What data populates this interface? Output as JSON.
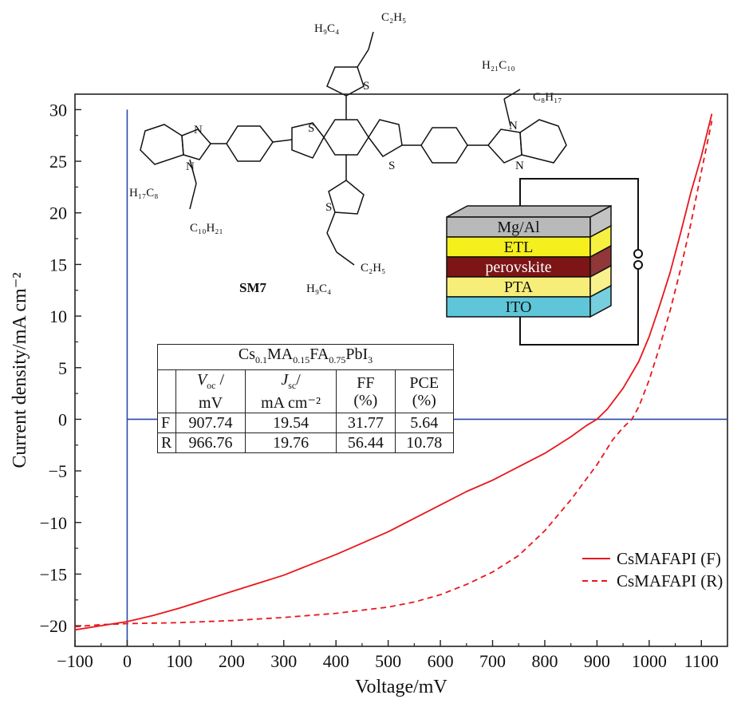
{
  "chart_data": {
    "type": "line",
    "title": "",
    "xlabel": "Voltage/mV",
    "ylabel": "Current density/mA cm⁻²",
    "xlim": [
      -100,
      1150
    ],
    "ylim": [
      -22,
      31.5
    ],
    "xticks": [
      -100,
      0,
      100,
      200,
      300,
      400,
      500,
      600,
      700,
      800,
      900,
      1000,
      1100
    ],
    "yticks": [
      -20,
      -15,
      -10,
      -5,
      0,
      5,
      10,
      15,
      20,
      25,
      30
    ],
    "xtick_labels": [
      "−100",
      "0",
      "100",
      "200",
      "300",
      "400",
      "500",
      "600",
      "700",
      "800",
      "900",
      "1000",
      "1100"
    ],
    "ytick_labels": [
      "−20",
      "−15",
      "−10",
      "−5",
      "0",
      "5",
      "10",
      "15",
      "20",
      "25",
      "30"
    ],
    "reference_lines": {
      "x": 0,
      "y": 0
    },
    "grid": false,
    "legend_position": "bottom-right",
    "series": [
      {
        "name": "CsMAFAPI (F)",
        "style": "solid",
        "color": "#e8161b",
        "x": [
          -100,
          -50,
          0,
          50,
          100,
          150,
          200,
          250,
          300,
          350,
          400,
          450,
          500,
          550,
          600,
          650,
          700,
          750,
          800,
          850,
          880,
          900,
          920,
          950,
          980,
          1000,
          1020,
          1040,
          1060,
          1080,
          1100,
          1120
        ],
        "y": [
          -20.4,
          -20.0,
          -19.6,
          -19.0,
          -18.3,
          -17.5,
          -16.7,
          -15.9,
          -15.1,
          -14.1,
          -13.1,
          -12.0,
          -10.9,
          -9.6,
          -8.3,
          -7.0,
          -5.9,
          -4.6,
          -3.3,
          -1.7,
          -0.6,
          0.0,
          1.0,
          3.0,
          5.6,
          8.0,
          11.0,
          14.2,
          18.0,
          22.0,
          25.5,
          29.6
        ]
      },
      {
        "name": "CsMAFAPI (R)",
        "style": "dashed",
        "color": "#e8161b",
        "x": [
          -100,
          -50,
          0,
          100,
          200,
          300,
          400,
          500,
          550,
          600,
          650,
          700,
          750,
          800,
          850,
          900,
          930,
          950,
          967,
          980,
          1000,
          1020,
          1040,
          1060,
          1080,
          1100,
          1120
        ],
        "y": [
          -20.1,
          -19.9,
          -19.8,
          -19.7,
          -19.5,
          -19.2,
          -18.8,
          -18.2,
          -17.7,
          -17.0,
          -16.0,
          -14.8,
          -13.2,
          -10.8,
          -7.8,
          -4.4,
          -2.0,
          -0.8,
          0.0,
          1.2,
          3.8,
          7.0,
          10.5,
          14.5,
          19.0,
          24.0,
          28.9
        ]
      }
    ]
  },
  "molecule": {
    "label": "SM7",
    "atoms": {
      "n_left_top": "N",
      "n_left_bottom": "N",
      "s_core_left": "S",
      "s_core_right": "S",
      "s_top": "S",
      "s_bottom": "S",
      "n_right_top": "N",
      "n_right_bottom": "N"
    },
    "substituents": {
      "top_h9c4": "H₉C₄",
      "top_c2h5": "C₂H₅",
      "bottom_h9c4": "H₉C₄",
      "bottom_c2h5": "C₂H₅",
      "left_h17c8": "H₁₇C₈",
      "left_c10h21": "C₁₀H₂₁",
      "right_h21c10": "H₂₁C₁₀",
      "right_c8h17": "C₈H₁₇"
    }
  },
  "device_stack": {
    "layers": [
      {
        "label": "Mg/Al",
        "color": "#b9b9b9"
      },
      {
        "label": "ETL",
        "color": "#f5ef1e"
      },
      {
        "label": "perovskite",
        "color": "#7d1416",
        "text_color": "#ffffff"
      },
      {
        "label": "PTA",
        "color": "#f7ee7a"
      },
      {
        "label": "ITO",
        "color": "#5ec6d8"
      }
    ]
  },
  "table": {
    "title_parts": [
      "Cs",
      "0.1",
      "MA",
      "0.15",
      "FA",
      "0.75",
      "PbI",
      "3"
    ],
    "headers": {
      "voc_sym": "V",
      "voc_sub": "oc",
      "voc_slash": "/",
      "voc_unit": "mV",
      "jsc_sym": "J",
      "jsc_sub": "sc",
      "jsc_slash": "/",
      "jsc_unit": "mA cm⁻²",
      "ff": "FF",
      "ff_unit": "(%)",
      "pce": "PCE",
      "pce_unit": "(%)"
    },
    "rows": [
      {
        "label": "F",
        "voc": "907.74",
        "jsc": "19.54",
        "ff": "31.77",
        "pce": "5.64"
      },
      {
        "label": "R",
        "voc": "966.76",
        "jsc": "19.76",
        "ff": "56.44",
        "pce": "10.78"
      }
    ]
  }
}
